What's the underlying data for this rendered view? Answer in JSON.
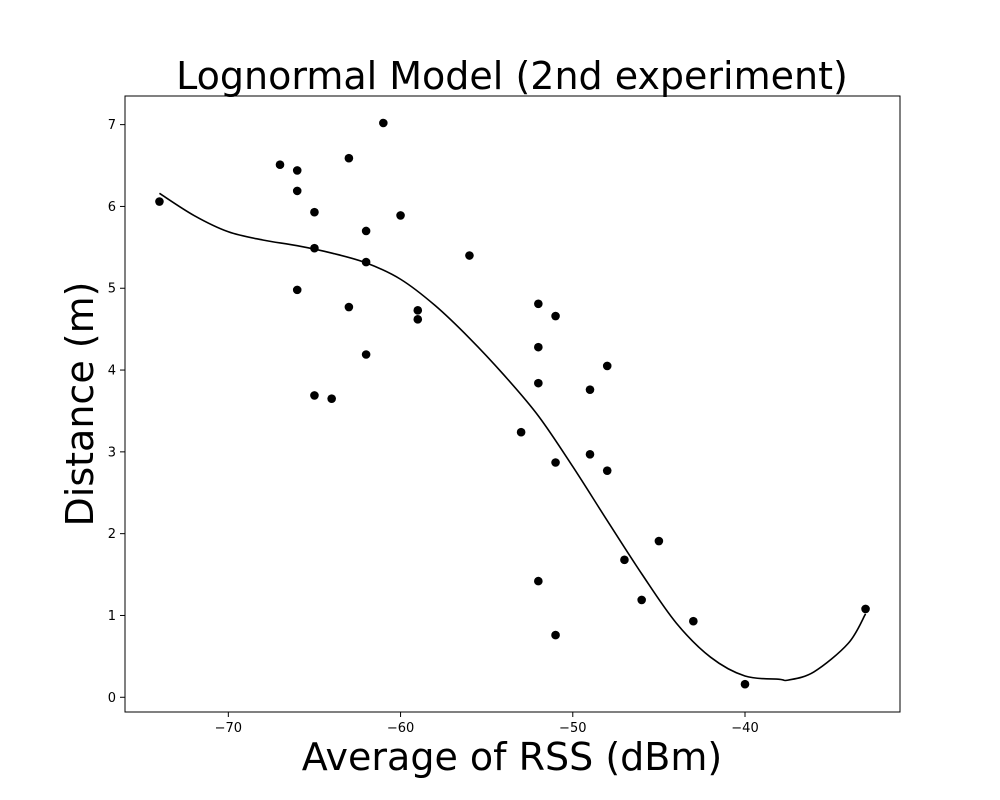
{
  "chart_data": {
    "type": "scatter",
    "title": "Lognormal Model (2nd experiment)",
    "xlabel": "Average of RSS (dBm)",
    "ylabel": "Distance (m)",
    "xlim": [
      -76,
      -31
    ],
    "ylim": [
      -0.18,
      7.35
    ],
    "xticks": [
      -70,
      -60,
      -50,
      -40
    ],
    "xtick_labels": [
      "−70",
      "−60",
      "−50",
      "−40"
    ],
    "yticks": [
      0,
      1,
      2,
      3,
      4,
      5,
      6,
      7
    ],
    "ytick_labels": [
      "0",
      "1",
      "2",
      "3",
      "4",
      "5",
      "6",
      "7"
    ],
    "grid": false,
    "series": [
      {
        "kind": "scatter",
        "color": "#000000",
        "x": [
          -74,
          -67,
          -66,
          -66,
          -66,
          -65,
          -65,
          -65,
          -64,
          -63,
          -63,
          -62,
          -62,
          -62,
          -61,
          -60,
          -59,
          -59,
          -56,
          -53,
          -52,
          -52,
          -52,
          -52,
          -51,
          -51,
          -51,
          -49,
          -49,
          -48,
          -48,
          -47,
          -46,
          -45,
          -43,
          -40,
          -33
        ],
        "y": [
          6.06,
          6.51,
          6.44,
          6.19,
          4.98,
          5.93,
          5.49,
          3.69,
          3.65,
          6.59,
          4.77,
          5.7,
          5.32,
          4.19,
          7.02,
          5.89,
          4.73,
          4.62,
          5.4,
          3.24,
          4.81,
          4.28,
          3.84,
          1.42,
          4.66,
          2.87,
          0.76,
          3.76,
          2.97,
          4.05,
          2.77,
          1.68,
          1.19,
          1.91,
          0.93,
          0.16,
          1.08
        ]
      },
      {
        "kind": "line",
        "color": "#000000",
        "x": [
          -74,
          -72,
          -70,
          -68,
          -66,
          -64,
          -62,
          -60,
          -58,
          -56,
          -54,
          -52,
          -50,
          -48,
          -46,
          -44,
          -42,
          -40,
          -38,
          -37.5,
          -36,
          -34,
          -33
        ],
        "y": [
          6.16,
          5.89,
          5.69,
          5.59,
          5.52,
          5.43,
          5.31,
          5.11,
          4.79,
          4.39,
          3.94,
          3.44,
          2.82,
          2.16,
          1.51,
          0.91,
          0.49,
          0.26,
          0.22,
          0.21,
          0.31,
          0.66,
          1.02
        ]
      }
    ]
  }
}
